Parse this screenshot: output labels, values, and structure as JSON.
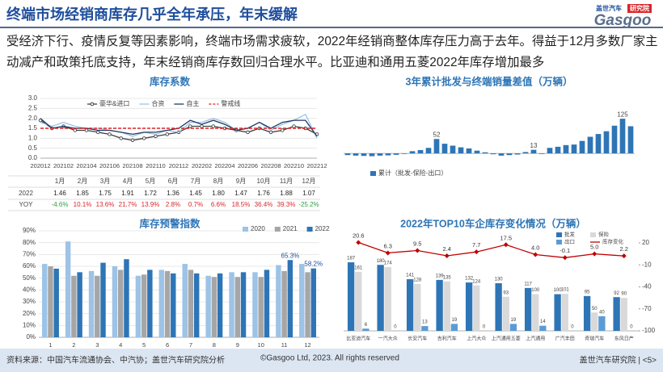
{
  "header": {
    "title": "终端市场经销商库存几乎全年承压，年末缓解",
    "logo_cn": "盖世汽车",
    "logo_badge": "研究院",
    "logo_en": "Gasgoo"
  },
  "summary": "受经济下行、疫情反复等因素影响，终端市场需求疲软，2022年经销商整体库存压力高于去年。得益于12月多数厂家主动减产和政策托底支持，年末经销商库存数回归合理水平。比亚迪和通用五菱2022年库存增加最多",
  "chart_data": [
    {
      "type": "line",
      "title": "库存系数",
      "categories": [
        "202012",
        null,
        "202102",
        null,
        "202104",
        null,
        "202106",
        null,
        "202108",
        null,
        "202110",
        null,
        "202112",
        null,
        "202202",
        null,
        "202204",
        null,
        "202206",
        null,
        "202208",
        null,
        "202210",
        null,
        "202212"
      ],
      "ylim": [
        0,
        3
      ],
      "yticks": [
        {
          "value": 0,
          "label": "0.0"
        },
        0.5,
        {
          "value": 1,
          "label": "1.0"
        },
        1.5,
        {
          "value": 2,
          "label": "2.0"
        },
        2.5,
        {
          "value": 3,
          "label": "3.0"
        }
      ],
      "grid": true,
      "series": [
        {
          "name": "豪华&进口",
          "color": "#404040",
          "marker": "circle",
          "values": [
            1.9,
            1.5,
            1.6,
            1.4,
            1.4,
            1.3,
            1.2,
            1.0,
            0.9,
            1.0,
            1.1,
            1.2,
            1.3,
            1.6,
            1.6,
            1.6,
            1.5,
            1.4,
            1.3,
            1.5,
            1.3,
            1.4,
            1.6,
            1.5,
            1.2
          ]
        },
        {
          "name": "合资",
          "color": "#9dc3e6",
          "values": [
            1.8,
            1.6,
            1.8,
            1.6,
            1.5,
            1.5,
            1.4,
            1.3,
            1.1,
            1.3,
            1.2,
            1.4,
            1.3,
            1.8,
            1.8,
            2.0,
            1.8,
            1.4,
            1.5,
            1.8,
            1.4,
            1.7,
            1.9,
            2.2,
            1.0
          ]
        },
        {
          "name": "自主",
          "color": "#1f3864",
          "values": [
            2.0,
            1.5,
            1.6,
            1.5,
            1.5,
            1.4,
            1.4,
            1.3,
            1.2,
            1.3,
            1.3,
            1.4,
            1.5,
            1.9,
            1.7,
            1.9,
            1.7,
            1.4,
            1.5,
            1.8,
            1.5,
            1.8,
            1.9,
            1.9,
            1.1
          ]
        },
        {
          "name": "警戒线",
          "color": "#e02020",
          "dash": true,
          "values": [
            1.5,
            1.5,
            1.5,
            1.5,
            1.5,
            1.5,
            1.5,
            1.5,
            1.5,
            1.5,
            1.5,
            1.5,
            1.5,
            1.5,
            1.5,
            1.5,
            1.5,
            1.5,
            1.5,
            1.5,
            1.5,
            1.5,
            1.5,
            1.5,
            1.5
          ]
        }
      ]
    },
    {
      "type": "bar",
      "title": "3年累计批发与终端销量差值（万辆）",
      "categories": [
        null,
        null,
        null,
        null,
        null,
        null,
        null,
        null,
        null,
        null,
        null,
        null,
        null,
        null,
        null,
        null,
        null,
        null,
        null,
        null,
        null,
        null,
        null,
        null,
        null,
        null,
        null,
        null,
        null,
        null,
        null,
        null,
        null,
        null,
        null,
        null
      ],
      "ylim": [
        -20,
        140
      ],
      "series": [
        {
          "name": "累计（批发-保险-出口）",
          "color": "#2e75b6",
          "values": [
            -6,
            -8,
            -9,
            -10,
            -8,
            -7,
            -5,
            -2,
            8,
            12,
            20,
            52,
            35,
            28,
            22,
            18,
            10,
            4,
            -3,
            -8,
            -6,
            -4,
            5,
            13,
            -2,
            20,
            24,
            30,
            32,
            45,
            60,
            70,
            80,
            100,
            125,
            98
          ],
          "value_labels": [
            null,
            null,
            null,
            null,
            null,
            null,
            null,
            null,
            null,
            null,
            null,
            "52",
            null,
            null,
            null,
            null,
            null,
            null,
            null,
            null,
            null,
            null,
            null,
            "13",
            null,
            null,
            null,
            null,
            null,
            null,
            null,
            null,
            null,
            null,
            "125",
            null
          ]
        }
      ]
    },
    {
      "type": "bar",
      "title": "库存预警指数",
      "categories": [
        "1",
        "2",
        "3",
        "4",
        "5",
        "6",
        "7",
        "8",
        "9",
        "10",
        "11",
        "12"
      ],
      "ylim": [
        0,
        90
      ],
      "yticks": [
        {
          "value": 0,
          "label": "0%"
        },
        {
          "value": 10,
          "label": "10%"
        },
        {
          "value": 20,
          "label": "20%"
        },
        {
          "value": 30,
          "label": "30%"
        },
        {
          "value": 40,
          "label": "40%"
        },
        {
          "value": 50,
          "label": "50%"
        },
        {
          "value": 60,
          "label": "60%"
        },
        {
          "value": 70,
          "label": "70%"
        },
        {
          "value": 80,
          "label": "80%"
        },
        {
          "value": 90,
          "label": "90%"
        }
      ],
      "grid": true,
      "series": [
        {
          "name": "2020",
          "color": "#9dc3e6",
          "values": [
            62,
            81,
            56,
            60,
            52,
            57,
            62,
            52,
            55,
            55,
            61,
            62
          ]
        },
        {
          "name": "2021",
          "color": "#a6a6a6",
          "values": [
            60,
            52,
            52,
            57,
            53,
            56,
            57,
            51,
            51,
            51,
            56,
            55
          ]
        },
        {
          "name": "2022",
          "color": "#2e75b6",
          "values": [
            58,
            55,
            63,
            66,
            57,
            54,
            54,
            54,
            55,
            57,
            65.3,
            58.2
          ],
          "value_labels": [
            null,
            null,
            null,
            null,
            null,
            null,
            null,
            null,
            null,
            null,
            "65.3%",
            "58.2%"
          ]
        }
      ]
    },
    {
      "type": "bar",
      "title": "2022年TOP10车企库存变化情况（万辆）",
      "categories": [
        "比亚迪汽车",
        "一汽大众",
        "长安汽车",
        "吉利汽车",
        "上汽大众",
        "上汽通用五菱",
        "上汽通用",
        "广汽丰田",
        "奇瑞汽车",
        "东风日产"
      ],
      "ylim": [
        0,
        240
      ],
      "y2lim": [
        -100,
        20
      ],
      "y2ticks": [
        20,
        -10,
        -40,
        -70,
        -100
      ],
      "data_labels": true,
      "series": [
        {
          "name": "批发",
          "color": "#2e75b6",
          "values": [
            187,
            180,
            141,
            139,
            132,
            130,
            117,
            100,
            95,
            92
          ]
        },
        {
          "name": "保险",
          "color": "#d9d9d9",
          "values": [
            161,
            174,
            128,
            135,
            124,
            93,
            100,
            101,
            50,
            90
          ]
        },
        {
          "name": "出口",
          "color": "#5b9bd5",
          "values": [
            6,
            0,
            13,
            19,
            0,
            19,
            14,
            0,
            40,
            0
          ]
        },
        {
          "name": "库存变化",
          "type": "line",
          "axis": "y2",
          "color": "#c00000",
          "marker": "diamond",
          "values": [
            20.6,
            6.3,
            9.5,
            2.4,
            7.7,
            17.5,
            4.0,
            -0.1,
            5.0,
            2.2
          ],
          "value_labels": [
            "20.6",
            "6.3",
            "9.5",
            "2.4",
            "7.7",
            "17.5",
            "4.0",
            "-0.1",
            "5.0",
            "2.2"
          ]
        }
      ]
    }
  ],
  "table": {
    "columns": [
      "1月",
      "2月",
      "3月",
      "4月",
      "5月",
      "6月",
      "7月",
      "8月",
      "9月",
      "10月",
      "11月",
      "12月"
    ],
    "rows": [
      {
        "label": "2022",
        "cells": [
          "1.46",
          "1.85",
          "1.75",
          "1.91",
          "1.72",
          "1.36",
          "1.45",
          "1.80",
          "1.47",
          "1.76",
          "1.88",
          "1.07"
        ]
      },
      {
        "label": "YOY",
        "cells": [
          "-4.6%",
          "10.1%",
          "13.6%",
          "21.7%",
          "13.9%",
          "2.8%",
          "0.7%",
          "6.6%",
          "18.5%",
          "36.4%",
          "39.3%",
          "-25.2%"
        ]
      }
    ]
  },
  "footer": {
    "source": "资料来源：中国汽车流通协会、中汽协；盖世汽车研究院分析",
    "copyright": "©Gasgoo Ltd, 2023. All rights reserved",
    "brand": "盖世汽车研究院 | <5>"
  }
}
